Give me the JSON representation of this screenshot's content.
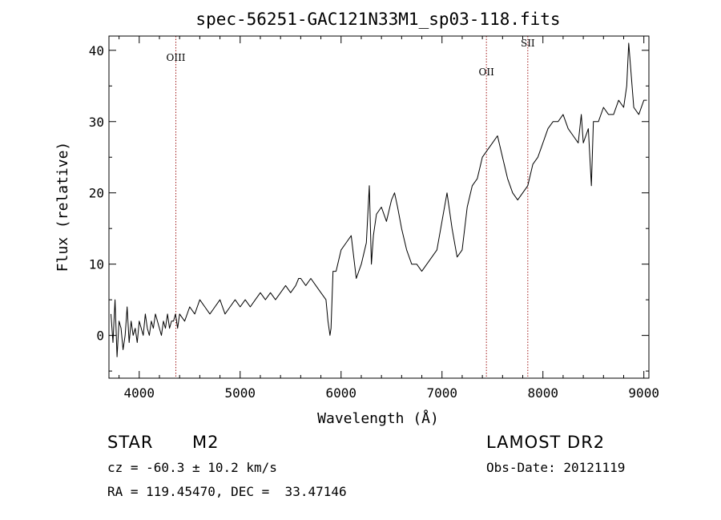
{
  "chart_data": {
    "type": "line",
    "title": "spec-56251-GAC121N33M1_sp03-118.fits",
    "xlabel": "Wavelength (Å)",
    "ylabel": "Flux (relative)",
    "xlim": [
      3700,
      9050
    ],
    "ylim": [
      -6,
      42
    ],
    "xticks": [
      4000,
      5000,
      6000,
      7000,
      8000,
      9000
    ],
    "yticks": [
      0,
      10,
      20,
      30,
      40
    ],
    "grid": false,
    "line_color": "#000000",
    "marker_color": "#a01818",
    "lines": [
      {
        "label": "OIII",
        "x": 4363
      },
      {
        "label": "OII",
        "x": 7440
      },
      {
        "label": "SII",
        "x": 7850
      }
    ],
    "series": [
      {
        "x": [
          3720,
          3740,
          3760,
          3780,
          3800,
          3820,
          3840,
          3860,
          3880,
          3900,
          3920,
          3940,
          3960,
          3980,
          4000,
          4020,
          4040,
          4060,
          4080,
          4100,
          4120,
          4140,
          4160,
          4180,
          4200,
          4220,
          4240,
          4260,
          4280,
          4300,
          4320,
          4340,
          4360,
          4380,
          4400,
          4450,
          4500,
          4550,
          4600,
          4650,
          4700,
          4750,
          4800,
          4850,
          4900,
          4950,
          5000,
          5050,
          5100,
          5150,
          5200,
          5250,
          5300,
          5350,
          5400,
          5450,
          5500,
          5550,
          5580,
          5600,
          5650,
          5700,
          5750,
          5800,
          5850,
          5870,
          5890,
          5900,
          5920,
          5950,
          6000,
          6050,
          6100,
          6150,
          6200,
          6250,
          6280,
          6300,
          6320,
          6350,
          6400,
          6450,
          6500,
          6530,
          6560,
          6600,
          6650,
          6700,
          6750,
          6800,
          6850,
          6900,
          6950,
          7000,
          7050,
          7100,
          7150,
          7200,
          7250,
          7300,
          7350,
          7400,
          7450,
          7500,
          7550,
          7600,
          7650,
          7700,
          7750,
          7800,
          7850,
          7900,
          7950,
          8000,
          8050,
          8100,
          8150,
          8200,
          8250,
          8300,
          8350,
          8380,
          8400,
          8450,
          8480,
          8500,
          8550,
          8600,
          8650,
          8700,
          8750,
          8800,
          8830,
          8850,
          8900,
          8950,
          9000,
          9030
        ],
        "y": [
          3,
          -1,
          5,
          -3,
          2,
          1,
          -2,
          0,
          4,
          -1,
          2,
          0,
          1,
          -1,
          2,
          1,
          0,
          3,
          1,
          0,
          2,
          1,
          3,
          2,
          1,
          0,
          2,
          1,
          3,
          1,
          2,
          2,
          3,
          1,
          3,
          2,
          4,
          3,
          5,
          4,
          3,
          4,
          5,
          3,
          4,
          5,
          4,
          5,
          4,
          5,
          6,
          5,
          6,
          5,
          6,
          7,
          6,
          7,
          8,
          8,
          7,
          8,
          7,
          6,
          5,
          2,
          0,
          1,
          9,
          9,
          12,
          13,
          14,
          8,
          10,
          13,
          21,
          10,
          14,
          17,
          18,
          16,
          19,
          20,
          18,
          15,
          12,
          10,
          10,
          9,
          10,
          11,
          12,
          16,
          20,
          15,
          11,
          12,
          18,
          21,
          22,
          25,
          26,
          27,
          28,
          25,
          22,
          20,
          19,
          20,
          21,
          24,
          25,
          27,
          29,
          30,
          30,
          31,
          29,
          28,
          27,
          31,
          27,
          29,
          21,
          30,
          30,
          32,
          31,
          31,
          33,
          32,
          35,
          41,
          32,
          31,
          33,
          33
        ]
      }
    ]
  },
  "info": {
    "object_class": "STAR",
    "subclass": "M2",
    "survey": "LAMOST DR2",
    "redshift": "cz = -60.3 ± 10.2 km/s",
    "obs_date": "Obs-Date: 20121119",
    "coords": "RA = 119.45470, DEC =  33.47146"
  }
}
